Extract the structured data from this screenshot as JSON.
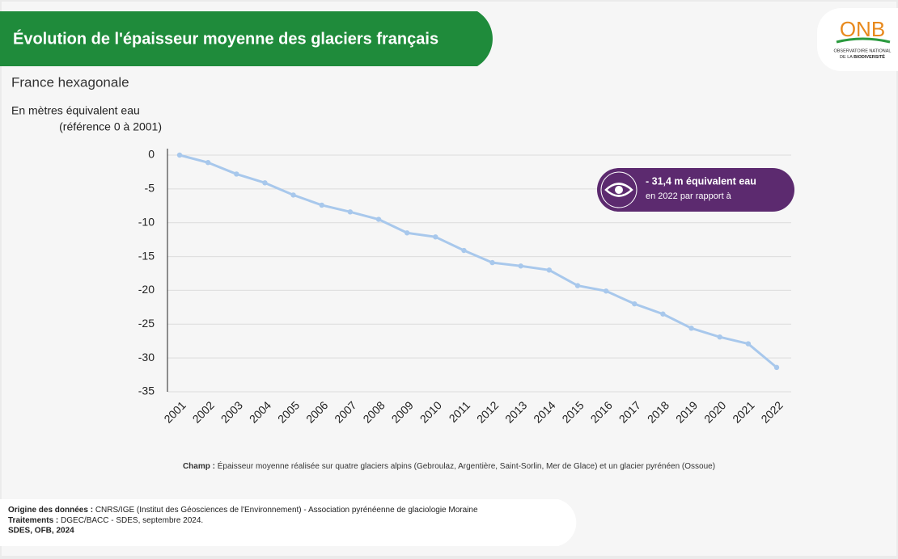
{
  "chart_data": {
    "type": "line",
    "title": "Évolution de l'épaisseur moyenne des glaciers français",
    "subtitle": "France hexagonale",
    "y_label": [
      "En mètres équivalent eau",
      "(référence 0 à 2001)"
    ],
    "categories": [
      "2001",
      "2002",
      "2003",
      "2004",
      "2005",
      "2006",
      "2007",
      "2008",
      "2009",
      "2010",
      "2011",
      "2012",
      "2013",
      "2014",
      "2015",
      "2016",
      "2017",
      "2018",
      "2019",
      "2020",
      "2021",
      "2022"
    ],
    "series": [
      {
        "color": "#a8c8ec",
        "values": [
          0,
          -1.1,
          -2.8,
          -4.1,
          -5.9,
          -7.4,
          -8.4,
          -9.5,
          -11.5,
          -12.1,
          -14.1,
          -15.9,
          -16.4,
          -17.0,
          -19.3,
          -20.1,
          -22.0,
          -23.5,
          -25.6,
          -26.9,
          -27.9,
          -31.4
        ]
      }
    ],
    "ylim": [
      -35,
      0
    ],
    "yticks": [
      0,
      -5,
      -10,
      -15,
      -20,
      -25,
      -30,
      -35
    ],
    "grid": true,
    "annotation": [
      "- 31,4 m équivalent eau",
      "en 2022 par rapport à"
    ],
    "note": {
      "label": "Champ :",
      "text": "Épaisseur moyenne réalisée sur quatre glaciers alpins (Gebroulaz, Argentière, Saint-Sorlin, Mer de Glace) et un glacier pyrénéen (Ossoue)"
    }
  },
  "footer": {
    "sources": [
      {
        "label": "Origine des données :",
        "text": "CNRS/IGE (Institut des Géosciences de l'Environnement) - Association pyrénéenne de glaciologie Moraine"
      },
      {
        "label": "Traitements :",
        "text": "DGEC/BACC - SDES, septembre 2024."
      }
    ],
    "credit": "SDES, OFB, 2024"
  },
  "logo": {
    "name": "ONB",
    "line1": "OBSERVATOIRE NATIONAL",
    "line2a": "DE LA ",
    "line2b": "BIODIVERSITÉ"
  }
}
